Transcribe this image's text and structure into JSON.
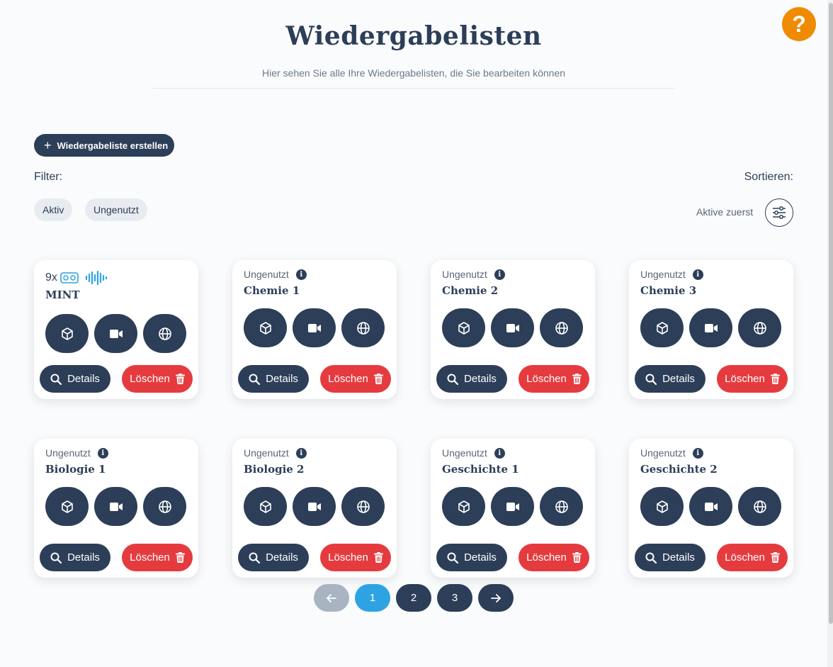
{
  "help": {
    "label": "?"
  },
  "header": {
    "title": "Wiedergabelisten",
    "subtitle": "Hier sehen Sie alle Ihre Wiedergabelisten, die Sie bearbeiten können"
  },
  "toolbar": {
    "create_label": "Wiedergabeliste erstellen",
    "filter_label": "Filter:",
    "sort_label": "Sortieren:",
    "sort_value": "Aktive zuerst",
    "filters": [
      "Aktiv",
      "Ungenutzt"
    ]
  },
  "card_common": {
    "details_label": "Details",
    "delete_label": "Löschen"
  },
  "playlists": [
    {
      "name": "MINT",
      "count": "9x",
      "status": ""
    },
    {
      "name": "Chemie 1",
      "status": "Ungenutzt"
    },
    {
      "name": "Chemie 2",
      "status": "Ungenutzt"
    },
    {
      "name": "Chemie 3",
      "status": "Ungenutzt"
    },
    {
      "name": "Biologie 1",
      "status": "Ungenutzt"
    },
    {
      "name": "Biologie 2",
      "status": "Ungenutzt"
    },
    {
      "name": "Geschichte 1",
      "status": "Ungenutzt"
    },
    {
      "name": "Geschichte 2",
      "status": "Ungenutzt"
    }
  ],
  "pagination": {
    "prev_icon": "arrow-left-icon",
    "next_icon": "arrow-right-icon",
    "pages": [
      "1",
      "2",
      "3"
    ],
    "current": "1"
  },
  "colors": {
    "navy": "#2c3e58",
    "danger": "#e53b3f",
    "accent": "#2ea3e3",
    "help": "#f08a00"
  }
}
